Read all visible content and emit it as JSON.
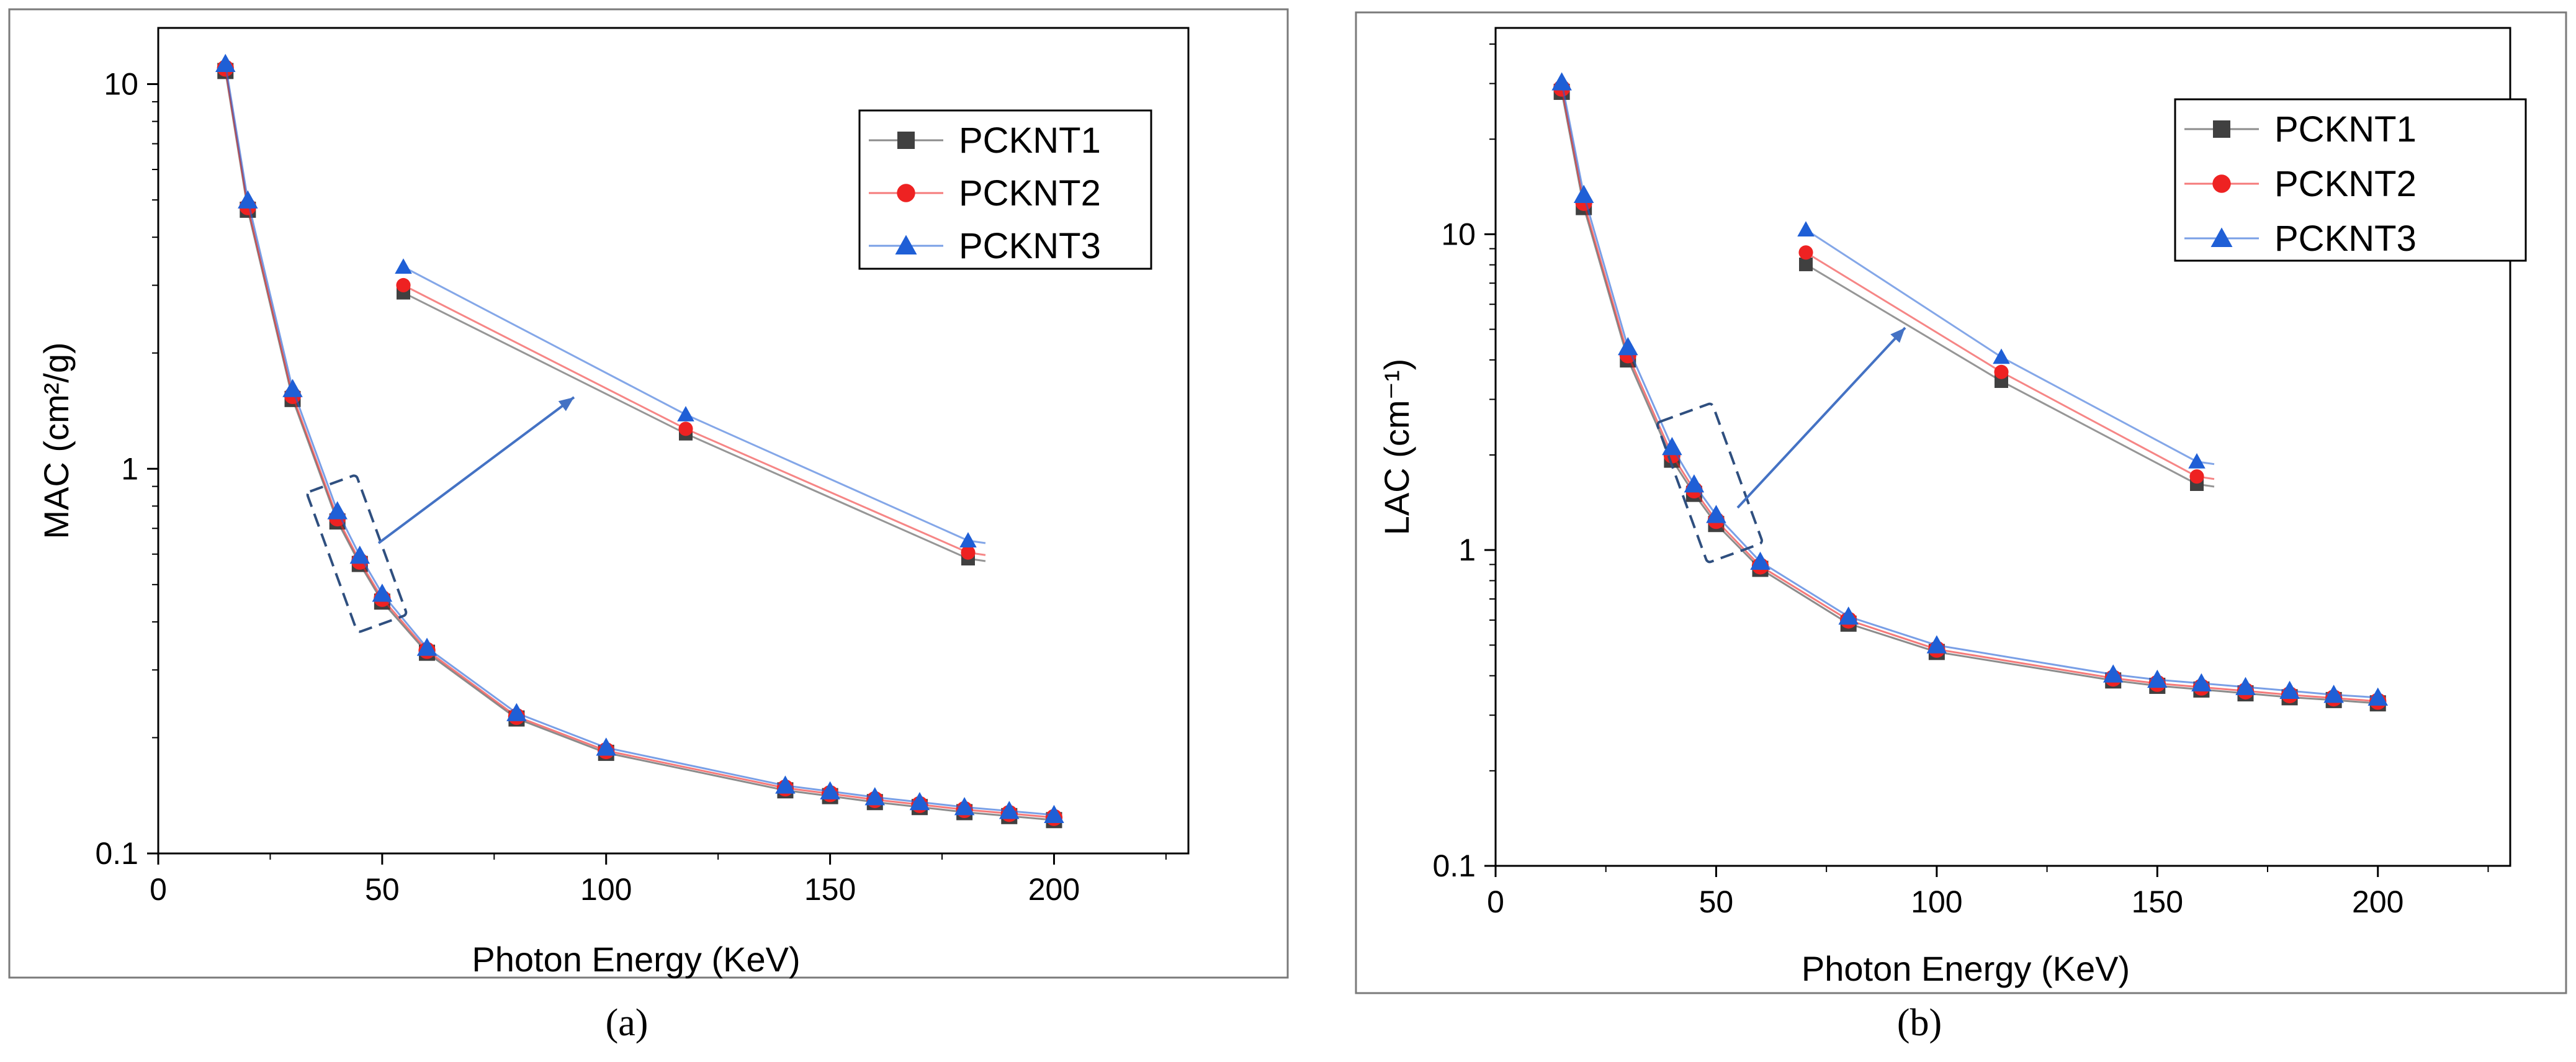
{
  "captions": [
    "(a)",
    "(b)"
  ],
  "chart_data": [
    {
      "type": "line",
      "panel": "(a)",
      "title": "",
      "xlabel": "Photon Energy (KeV)",
      "ylabel": "MAC (cm²/g)",
      "yscale": "log",
      "xlim": [
        0,
        230
      ],
      "ylim": [
        0.1,
        14
      ],
      "xticks": [
        0,
        50,
        100,
        150,
        200
      ],
      "yticks": [
        0.1,
        1,
        10
      ],
      "xtick_labels": [
        "0",
        "50",
        "100",
        "150",
        "200"
      ],
      "ytick_labels": [
        "0.1",
        "1",
        "10"
      ],
      "grid": false,
      "legend_position": "top-right",
      "x": [
        15,
        20,
        30,
        40,
        45,
        50,
        60,
        80,
        100,
        140,
        150,
        160,
        170,
        180,
        190,
        200
      ],
      "series": [
        {
          "name": "PCKNT1",
          "color": "#404040",
          "marker": "square",
          "values": [
            10.9,
            4.75,
            1.53,
            0.735,
            0.57,
            0.455,
            0.335,
            0.226,
            0.184,
            0.147,
            0.142,
            0.137,
            0.133,
            0.129,
            0.126,
            0.123
          ]
        },
        {
          "name": "PCKNT2",
          "color": "#ee2222",
          "marker": "circle",
          "values": [
            11.0,
            4.8,
            1.55,
            0.745,
            0.575,
            0.46,
            0.337,
            0.227,
            0.185,
            0.148,
            0.143,
            0.138,
            0.134,
            0.13,
            0.127,
            0.124
          ]
        },
        {
          "name": "PCKNT3",
          "color": "#1f5fd6",
          "marker": "triangle",
          "values": [
            11.2,
            4.95,
            1.6,
            0.77,
            0.59,
            0.47,
            0.34,
            0.23,
            0.187,
            0.149,
            0.144,
            0.139,
            0.135,
            0.131,
            0.128,
            0.125
          ]
        }
      ],
      "inset": {
        "x": [
          40,
          45,
          50
        ],
        "series": [
          {
            "name": "PCKNT1",
            "values": [
              0.735,
              0.57,
              0.455
            ]
          },
          {
            "name": "PCKNT2",
            "values": [
              0.745,
              0.575,
              0.46
            ]
          },
          {
            "name": "PCKNT3",
            "values": [
              0.77,
              0.59,
              0.47
            ]
          }
        ]
      }
    },
    {
      "type": "line",
      "panel": "(b)",
      "title": "",
      "xlabel": "Photon Energy (KeV)",
      "ylabel": "LAC (cm⁻¹)",
      "yscale": "log",
      "xlim": [
        0,
        230
      ],
      "ylim": [
        0.1,
        45
      ],
      "xticks": [
        0,
        50,
        100,
        150,
        200
      ],
      "yticks": [
        0.1,
        1,
        10
      ],
      "xtick_labels": [
        "0",
        "50",
        "100",
        "150",
        "200"
      ],
      "ytick_labels": [
        "0.1",
        "1",
        "10"
      ],
      "grid": false,
      "legend_position": "top-right",
      "x": [
        15,
        20,
        30,
        40,
        45,
        50,
        60,
        80,
        100,
        140,
        150,
        160,
        170,
        180,
        190,
        200
      ],
      "series": [
        {
          "name": "PCKNT1",
          "color": "#404040",
          "marker": "square",
          "values": [
            28.5,
            12.3,
            4.05,
            1.95,
            1.52,
            1.22,
            0.88,
            0.59,
            0.48,
            0.39,
            0.375,
            0.365,
            0.355,
            0.345,
            0.338,
            0.33
          ]
        },
        {
          "name": "PCKNT2",
          "color": "#ee2222",
          "marker": "circle",
          "values": [
            29.0,
            12.6,
            4.15,
            2.0,
            1.55,
            1.24,
            0.89,
            0.6,
            0.485,
            0.393,
            0.378,
            0.368,
            0.358,
            0.348,
            0.34,
            0.332
          ]
        },
        {
          "name": "PCKNT3",
          "color": "#1f5fd6",
          "marker": "triangle",
          "values": [
            30.0,
            13.2,
            4.35,
            2.1,
            1.6,
            1.28,
            0.91,
            0.61,
            0.495,
            0.4,
            0.385,
            0.375,
            0.365,
            0.355,
            0.345,
            0.338
          ]
        }
      ],
      "inset": {
        "x": [
          40,
          45,
          50
        ],
        "series": [
          {
            "name": "PCKNT1",
            "values": [
              1.95,
              1.52,
              1.22
            ]
          },
          {
            "name": "PCKNT2",
            "values": [
              2.0,
              1.55,
              1.24
            ]
          },
          {
            "name": "PCKNT3",
            "values": [
              2.1,
              1.6,
              1.28
            ]
          }
        ]
      }
    }
  ]
}
